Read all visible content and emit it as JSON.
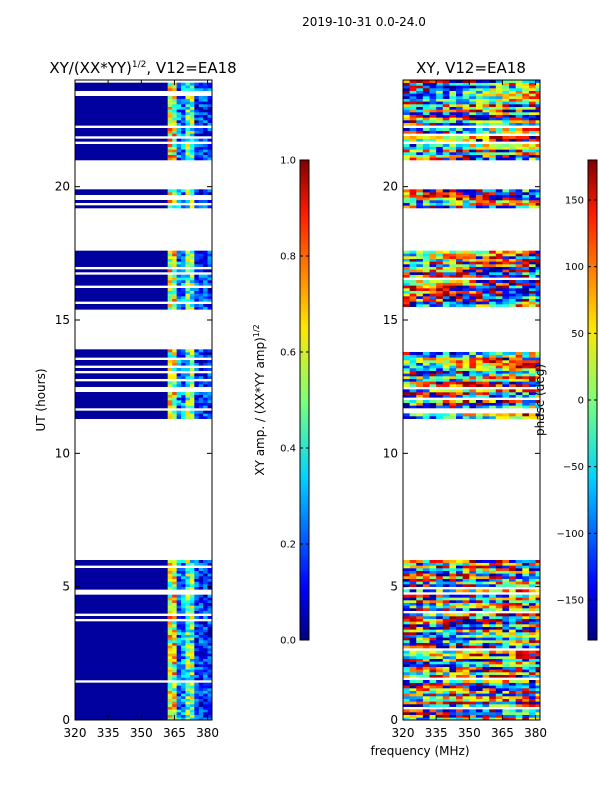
{
  "figure": {
    "suptitle": "2019-10-31 0.0-24.0",
    "xlabel": "frequency (MHz)",
    "colormap": "jet"
  },
  "chart_data": [
    {
      "type": "heatmap",
      "title_main": "XY/(XX*YY)",
      "title_sup": "1/2",
      "title_suffix": ", V12=EA18",
      "xlabel": "",
      "ylabel": "UT (hours)",
      "xlim": [
        320,
        382
      ],
      "ylim": [
        0,
        24
      ],
      "xticks": [
        "320",
        "335",
        "350",
        "365",
        "380"
      ],
      "xtick_values": [
        320,
        335,
        350,
        365,
        380
      ],
      "yticks": [
        "0",
        "5",
        "10",
        "15",
        "20"
      ],
      "ytick_values": [
        0,
        5,
        10,
        15,
        20
      ],
      "bands": [
        [
          0,
          6.0
        ],
        [
          11.3,
          11.6
        ],
        [
          11.7,
          13.9
        ],
        [
          15.4,
          17.6
        ],
        [
          19.2,
          19.9
        ],
        [
          21.0,
          24.0
        ]
      ],
      "colorbar": {
        "label": "XY amp. / (XX*YY amp)",
        "label_sup": "1/2",
        "range": [
          0.0,
          1.0
        ],
        "ticks": [
          "0.0",
          "0.2",
          "0.4",
          "0.6",
          "0.8",
          "1.0"
        ],
        "tick_values": [
          0.0,
          0.2,
          0.4,
          0.6,
          0.8,
          1.0
        ]
      }
    },
    {
      "type": "heatmap",
      "title_main": "XY, V12=EA18",
      "xlabel": "",
      "ylabel": "",
      "xlim": [
        320,
        382
      ],
      "ylim": [
        0,
        24
      ],
      "xticks": [
        "320",
        "335",
        "350",
        "365",
        "380"
      ],
      "xtick_values": [
        320,
        335,
        350,
        365,
        380
      ],
      "yticks": [
        "0",
        "5",
        "10",
        "15",
        "20"
      ],
      "ytick_values": [
        0,
        5,
        10,
        15,
        20
      ],
      "bands": [
        [
          0,
          6.0
        ],
        [
          11.3,
          11.6
        ],
        [
          11.7,
          13.9
        ],
        [
          15.4,
          17.6
        ],
        [
          19.2,
          19.9
        ],
        [
          21.0,
          24.0
        ]
      ],
      "colorbar": {
        "label": "phase (deg)",
        "range": [
          -180,
          180
        ],
        "ticks": [
          "−150",
          "−100",
          "−50",
          "0",
          "50",
          "100",
          "150"
        ],
        "tick_values": [
          -150,
          -100,
          -50,
          0,
          50,
          100,
          150
        ]
      }
    }
  ]
}
